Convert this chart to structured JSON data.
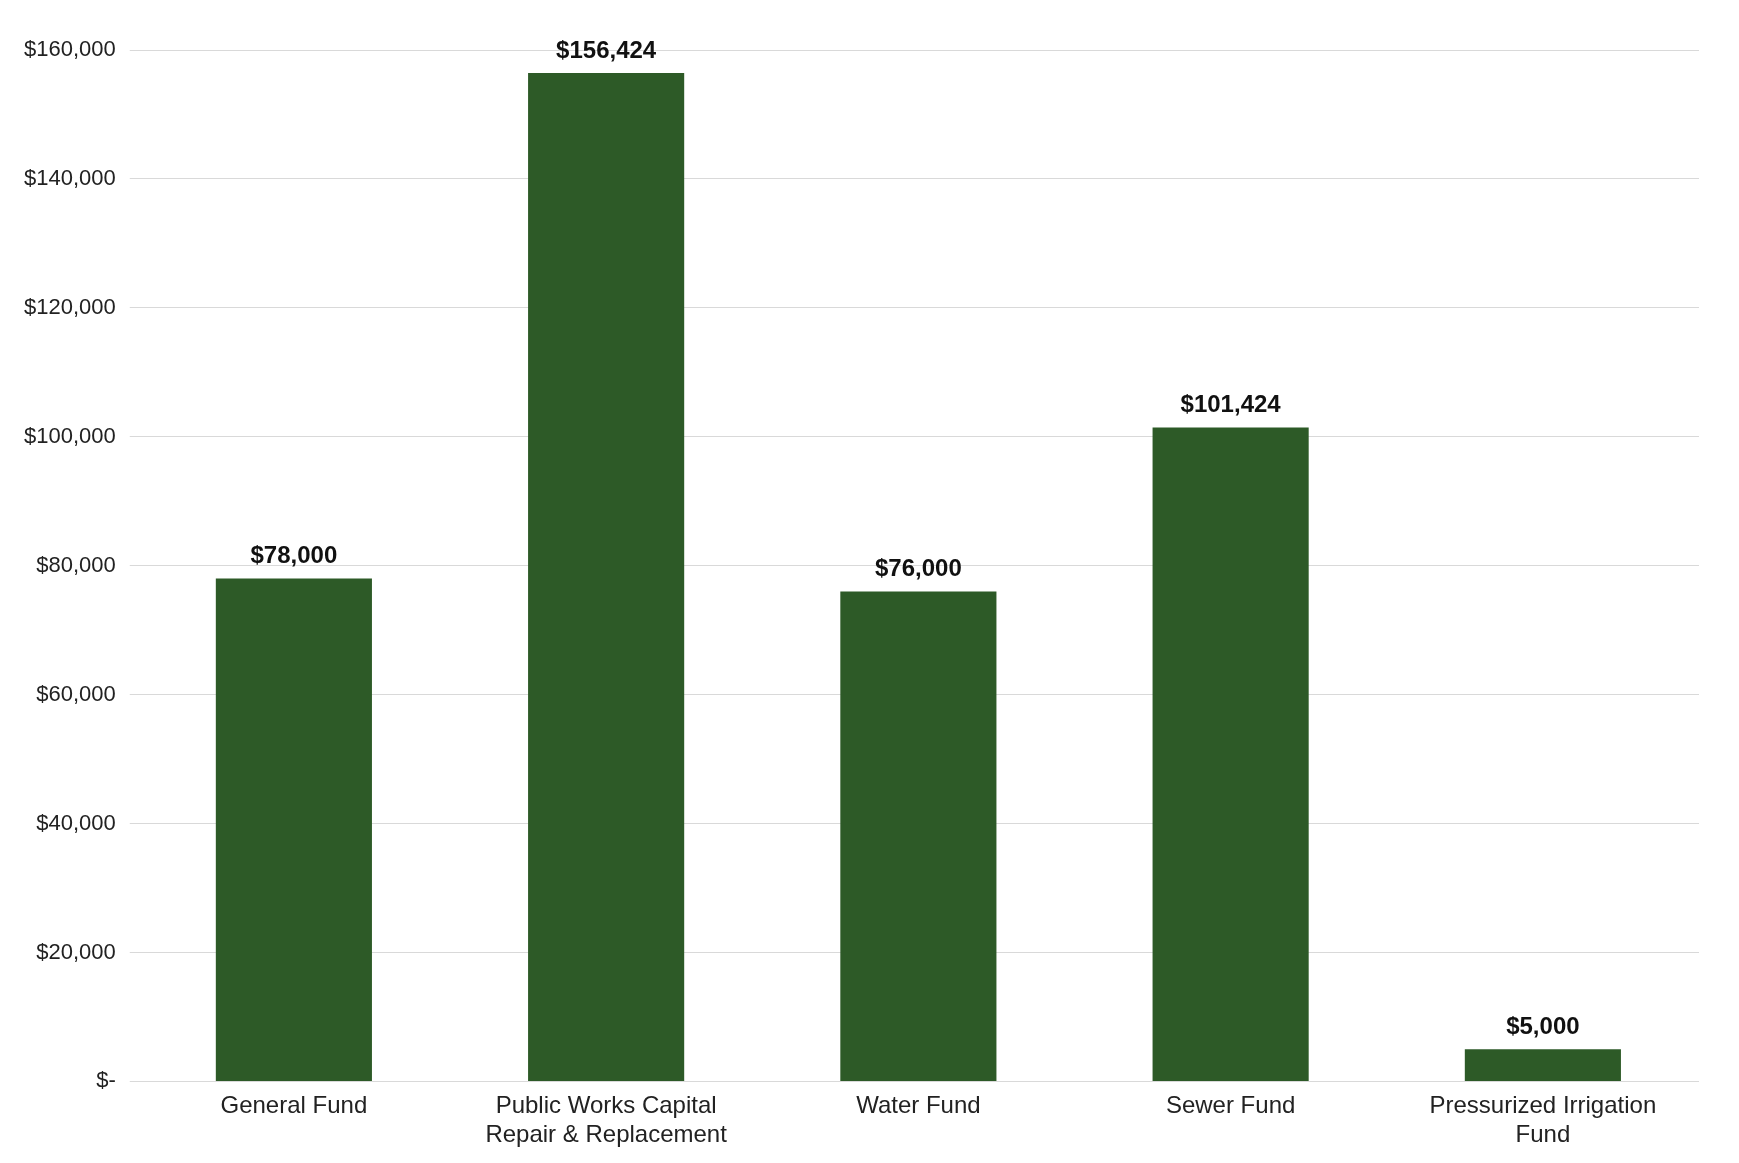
{
  "chart_data": {
    "type": "bar",
    "categories": [
      "General Fund",
      "Public Works Capital Repair & Replacement",
      "Water Fund",
      "Sewer Fund",
      "Pressurized Irrigation Fund"
    ],
    "values": [
      78000,
      156424,
      76000,
      101424,
      5000
    ],
    "value_labels": [
      "$78,000",
      "$156,424",
      "$76,000",
      "$101,424",
      "$5,000"
    ],
    "color": "#2d5a27",
    "ylim": [
      0,
      160000
    ],
    "yticks": [
      {
        "value": 0,
        "label": "$-"
      },
      {
        "value": 20000,
        "label": "$20,000"
      },
      {
        "value": 40000,
        "label": "$40,000"
      },
      {
        "value": 60000,
        "label": "$60,000"
      },
      {
        "value": 80000,
        "label": "$80,000"
      },
      {
        "value": 100000,
        "label": "$100,000"
      },
      {
        "value": 120000,
        "label": "$120,000"
      },
      {
        "value": 140000,
        "label": "$140,000"
      },
      {
        "value": 160000,
        "label": "$160,000"
      }
    ],
    "grid": "y",
    "legend": false
  }
}
